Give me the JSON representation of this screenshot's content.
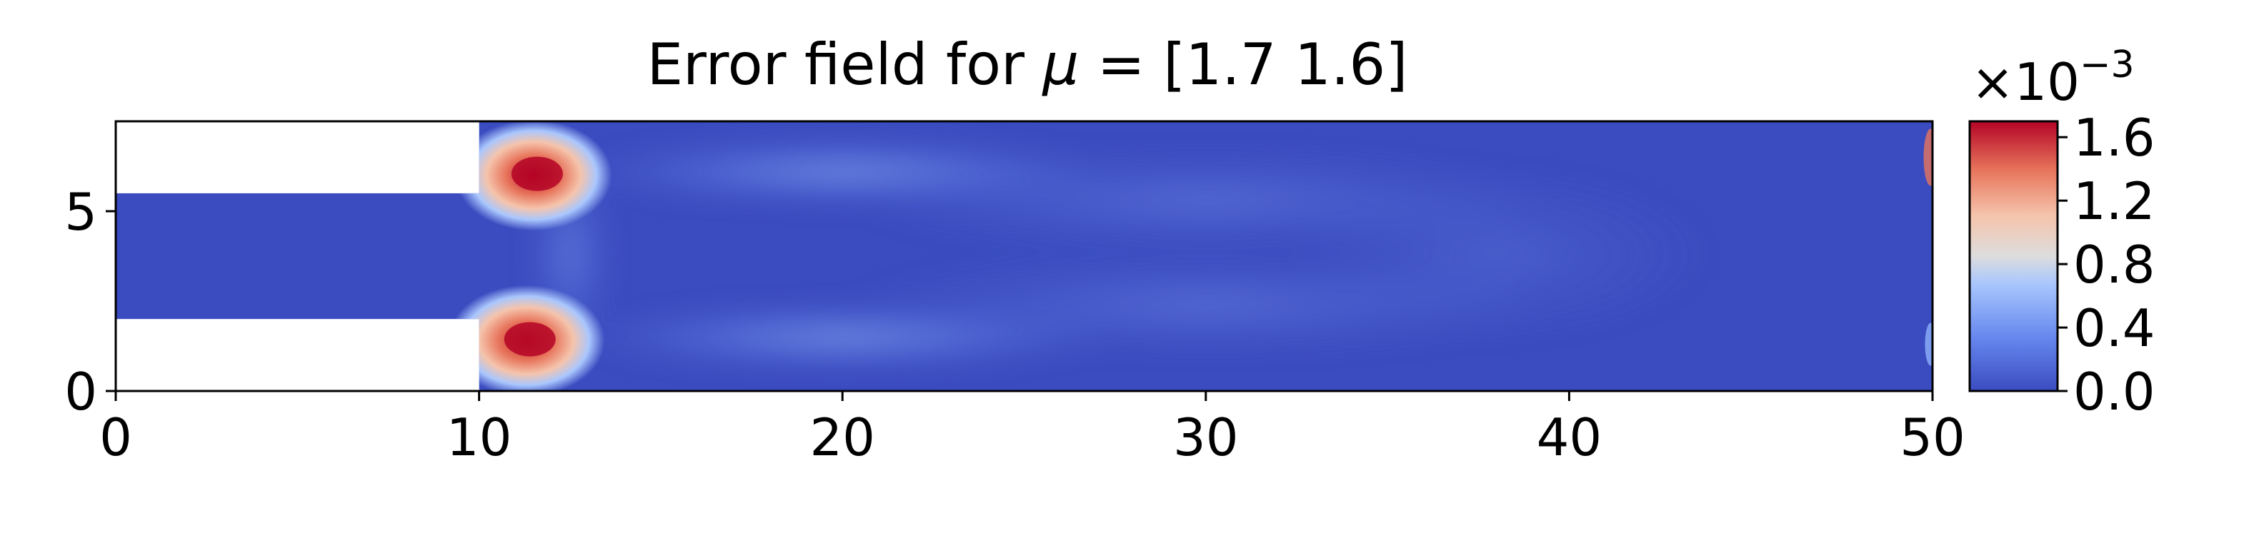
{
  "chart_data": {
    "type": "heatmap",
    "title": {
      "prefix": "Error field for ",
      "symbol": "μ",
      "suffix": " = [1.7 1.6]"
    },
    "xlabel": "",
    "ylabel": "",
    "xlim": [
      0,
      50
    ],
    "ylim": [
      0,
      7.5
    ],
    "x_ticks": [
      0,
      10,
      20,
      30,
      40,
      50
    ],
    "y_ticks": [
      0,
      5
    ],
    "domain": {
      "description_shape": "step channel",
      "inlet_channel": {
        "x": [
          0,
          10
        ],
        "y": [
          2.0,
          5.5
        ]
      },
      "main_channel": {
        "x": [
          10,
          50
        ],
        "y": [
          0,
          7.5
        ]
      }
    },
    "colormap": "coolwarm",
    "colors": {
      "low": "#3b4cc0",
      "mid": "#dddddd",
      "high": "#b40426"
    },
    "colorbar": {
      "offset_text": {
        "base": "×10",
        "exponent": "−3"
      },
      "scale": 0.001,
      "range": [
        0.0,
        1.7
      ],
      "ticks": [
        "0.0",
        "0.4",
        "0.8",
        "1.2",
        "1.6"
      ],
      "tick_values": [
        0.0,
        0.4,
        0.8,
        1.2,
        1.6
      ]
    },
    "hotspots": [
      {
        "x": 11.5,
        "y": 6.0,
        "value": 1.7
      },
      {
        "x": 11.3,
        "y": 1.4,
        "value": 1.6
      }
    ],
    "grid": false
  }
}
